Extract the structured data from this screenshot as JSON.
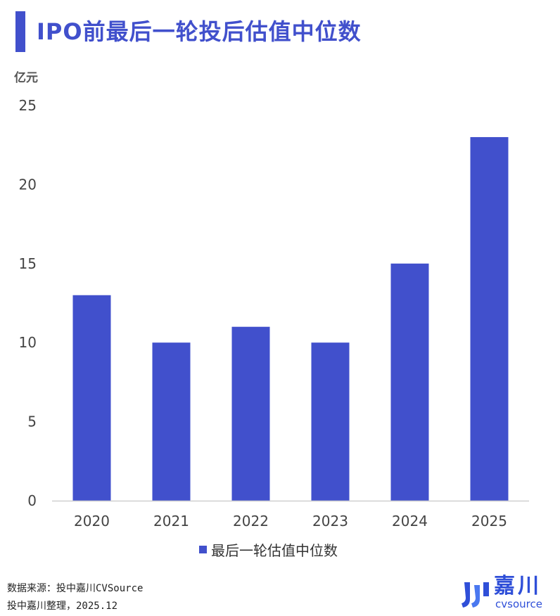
{
  "header": {
    "title": "IPO前最后一轮投后估值中位数"
  },
  "chart_data": {
    "type": "bar",
    "title": "IPO前最后一轮投后估值中位数",
    "ylabel": "亿元",
    "xlabel": "",
    "categories": [
      "2020",
      "2021",
      "2022",
      "2023",
      "2024",
      "2025"
    ],
    "series": [
      {
        "name": "最后一轮估值中位数",
        "values": [
          13,
          10,
          11,
          10,
          15,
          23
        ]
      }
    ],
    "ylim": [
      0,
      25
    ],
    "yticks": [
      "0",
      "5",
      "10",
      "15",
      "20",
      "25"
    ],
    "grid": false,
    "legend_position": "bottom",
    "bar_color": "#4150cc"
  },
  "footer": {
    "source": "数据来源：投中嘉川CVSource",
    "credit": "投中嘉川整理，2025.12"
  },
  "logo": {
    "cn": "嘉川",
    "en": "cvsource"
  },
  "colors": {
    "accent": "#4150cc",
    "logo": "#2f4fd8"
  }
}
